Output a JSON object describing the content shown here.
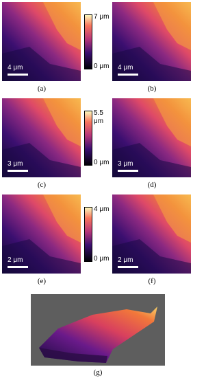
{
  "panels": [
    {
      "caption": "(a)",
      "scale_bar": "4 μm"
    },
    {
      "caption": "(b)",
      "scale_bar": "4 μm"
    },
    {
      "caption": "(c)",
      "scale_bar": "3 μm"
    },
    {
      "caption": "(d)",
      "scale_bar": "3 μm"
    },
    {
      "caption": "(e)",
      "scale_bar": "2 μm"
    },
    {
      "caption": "(f)",
      "scale_bar": "2 μm"
    },
    {
      "caption": "(g)"
    }
  ],
  "colorbars": [
    {
      "max": "7 μm",
      "min": "0 μm"
    },
    {
      "max": "5.5 μm",
      "min": "0 μm"
    },
    {
      "max": "4 μm",
      "min": "0 μm"
    }
  ]
}
